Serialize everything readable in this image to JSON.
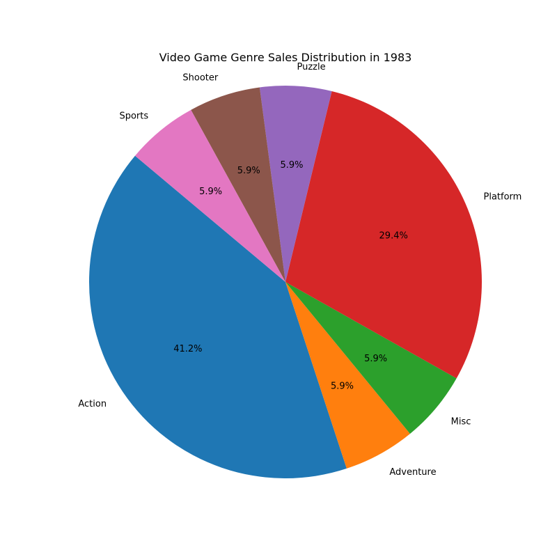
{
  "chart_data": {
    "type": "pie",
    "title": "Video Game Genre Sales Distribution in 1983",
    "slices": [
      {
        "label": "Action",
        "value": 41.2,
        "pct_label": "41.2%",
        "color": "#1f77b4"
      },
      {
        "label": "Adventure",
        "value": 5.9,
        "pct_label": "5.9%",
        "color": "#ff7f0e"
      },
      {
        "label": "Misc",
        "value": 5.9,
        "pct_label": "5.9%",
        "color": "#2ca02c"
      },
      {
        "label": "Platform",
        "value": 29.4,
        "pct_label": "29.4%",
        "color": "#d62728"
      },
      {
        "label": "Puzzle",
        "value": 5.9,
        "pct_label": "5.9%",
        "color": "#9467bd"
      },
      {
        "label": "Shooter",
        "value": 5.9,
        "pct_label": "5.9%",
        "color": "#8c564b"
      },
      {
        "label": "Sports",
        "value": 5.9,
        "pct_label": "5.9%",
        "color": "#e377c2"
      }
    ],
    "start_angle_deg": 140,
    "direction": "counterclockwise",
    "legend": "none"
  }
}
